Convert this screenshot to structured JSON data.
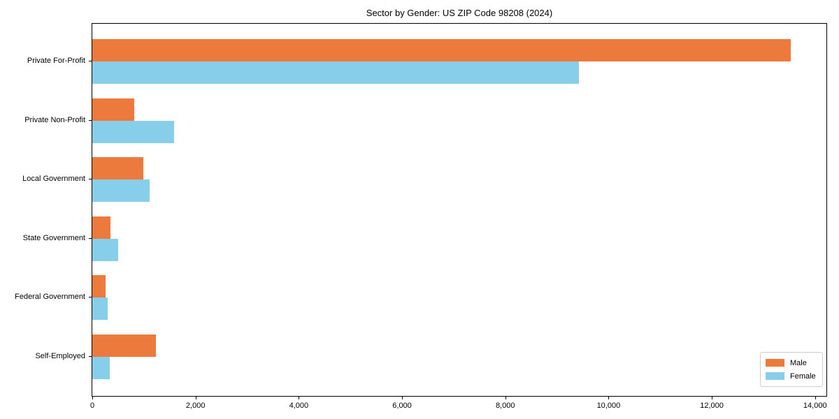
{
  "title": "Sector by Gender: US ZIP Code 98208 (2024)",
  "chart_data": {
    "type": "bar",
    "orientation": "horizontal",
    "title": "Sector by Gender: US ZIP Code 98208 (2024)",
    "categories": [
      "Private For-Profit",
      "Private Non-Profit",
      "Local Government",
      "State Government",
      "Federal Government",
      "Self-Employed"
    ],
    "series": [
      {
        "name": "Male",
        "color": "#EC7A3C",
        "values": [
          13530,
          815,
          990,
          350,
          260,
          1230
        ]
      },
      {
        "name": "Female",
        "color": "#87CEEB",
        "values": [
          9430,
          1580,
          1110,
          500,
          300,
          340
        ]
      }
    ],
    "xlabel": "",
    "ylabel": "",
    "xlim": [
      0,
      14220
    ],
    "xticks": [
      0,
      2000,
      4000,
      6000,
      8000,
      10000,
      12000,
      14000
    ],
    "xtick_labels": [
      "0",
      "2,000",
      "4,000",
      "6,000",
      "8,000",
      "10,000",
      "12,000",
      "14,000"
    ],
    "grid": false,
    "legend_position": "lower right",
    "axis_color": "#000000"
  }
}
